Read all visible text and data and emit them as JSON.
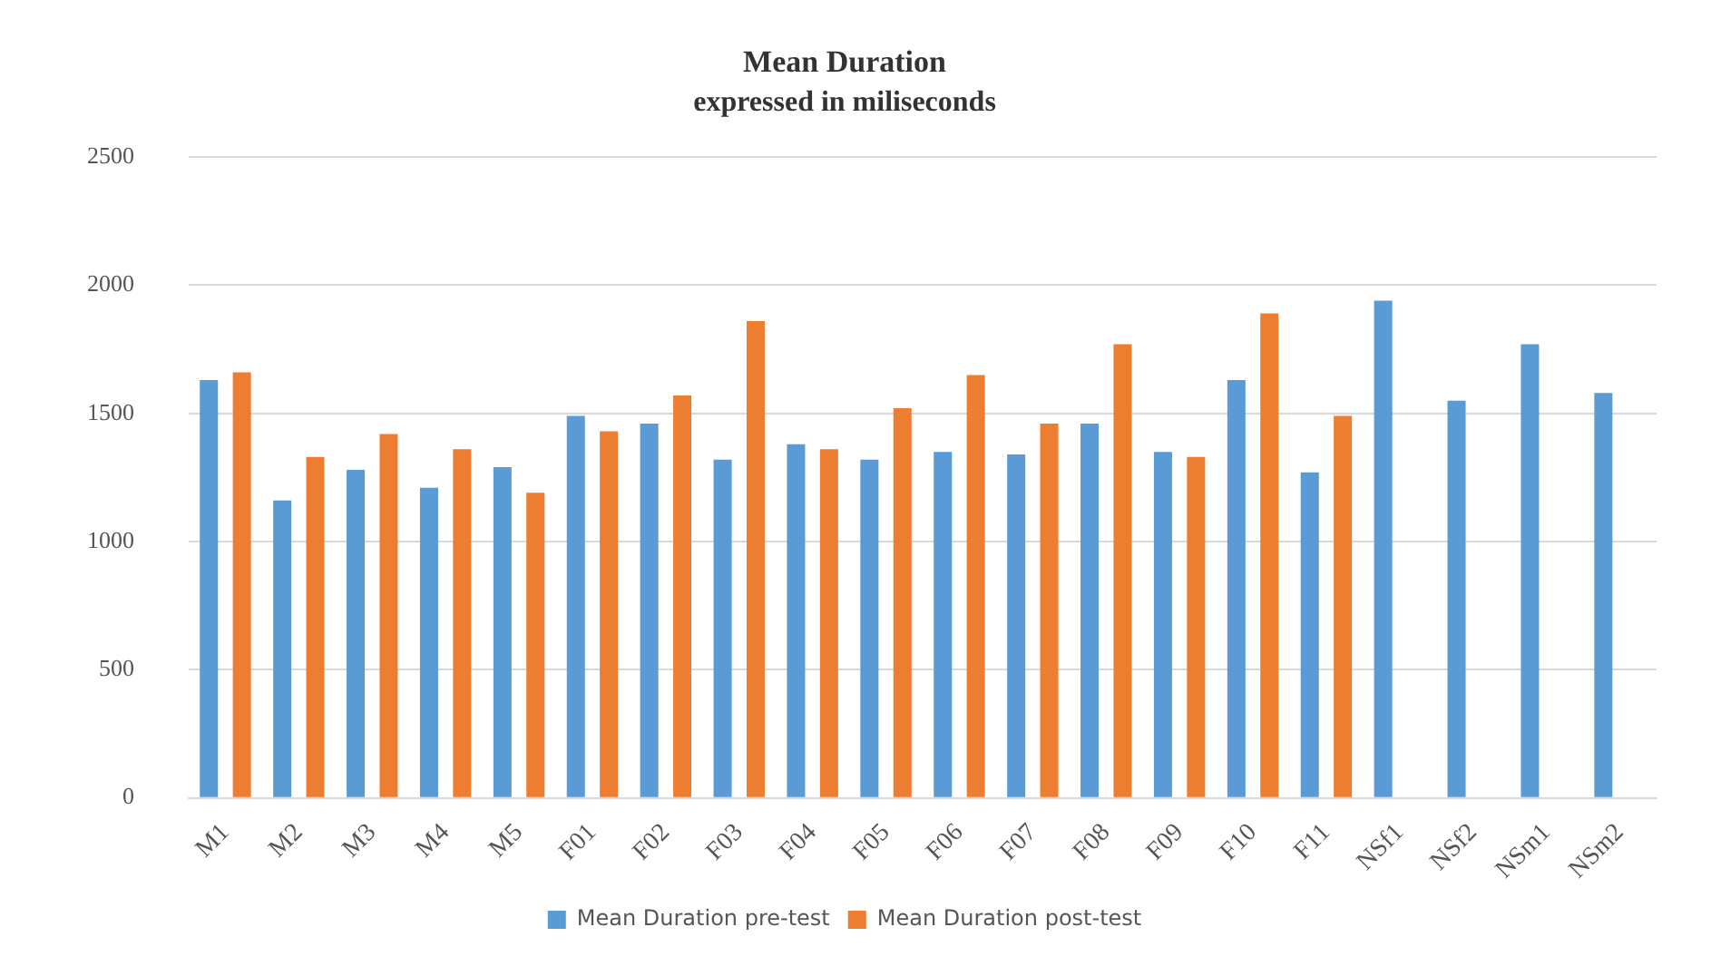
{
  "chart_data": {
    "type": "bar",
    "title": "Mean Duration",
    "subtitle": "expressed in miliseconds",
    "categories": [
      "M1",
      "M2",
      "M3",
      "M4",
      "M5",
      "F01",
      "F02",
      "F03",
      "F04",
      "F05",
      "F06",
      "F07",
      "F08",
      "F09",
      "F10",
      "F11",
      "NSf1",
      "NSf2",
      "NSm1",
      "NSm2"
    ],
    "series": [
      {
        "name": "Mean Duration pre-test",
        "color": "#5b9bd5",
        "values": [
          1630,
          1160,
          1280,
          1210,
          1290,
          1490,
          1460,
          1320,
          1380,
          1320,
          1350,
          1340,
          1460,
          1350,
          1630,
          1270,
          1940,
          1550,
          1770,
          1580
        ]
      },
      {
        "name": "Mean Duration post-test",
        "color": "#ed7d31",
        "values": [
          1660,
          1330,
          1420,
          1360,
          1190,
          1430,
          1570,
          1860,
          1360,
          1520,
          1650,
          1460,
          1770,
          1330,
          1890,
          1490,
          null,
          null,
          null,
          null
        ]
      }
    ],
    "ylim": [
      0,
      2500
    ],
    "yticks": [
      0,
      500,
      1000,
      1500,
      2000,
      2500
    ],
    "grid": "y",
    "legend": "bottom"
  }
}
